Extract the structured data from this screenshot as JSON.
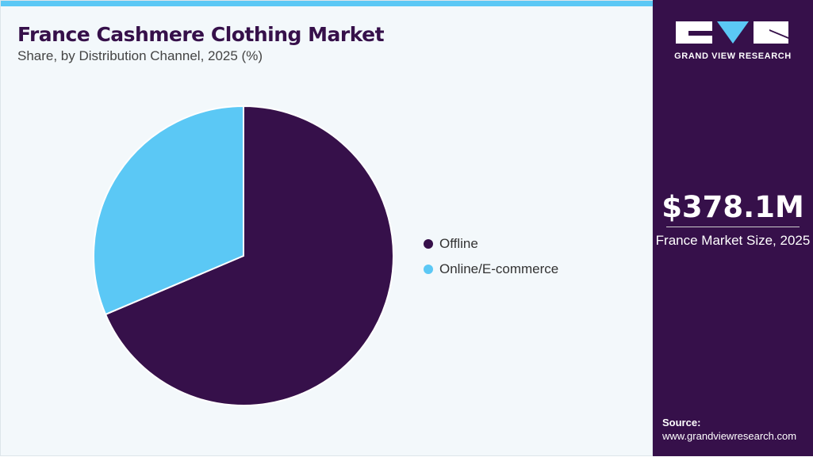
{
  "chart_data": {
    "type": "pie",
    "title": "France Cashmere Clothing Market",
    "subtitle": "Share, by Distribution Channel, 2025 (%)",
    "categories": [
      "Offline",
      "Online/E-commerce"
    ],
    "values": [
      68.6,
      31.4
    ],
    "colors": [
      "#36104a",
      "#5bc8f5"
    ],
    "legend_position": "right"
  },
  "sidebar": {
    "logo_text": "GRAND VIEW RESEARCH",
    "market_size": "$378.1M",
    "market_size_label": "France Market Size, 2025",
    "source_label": "Source:",
    "source_url": "www.grandviewresearch.com"
  }
}
